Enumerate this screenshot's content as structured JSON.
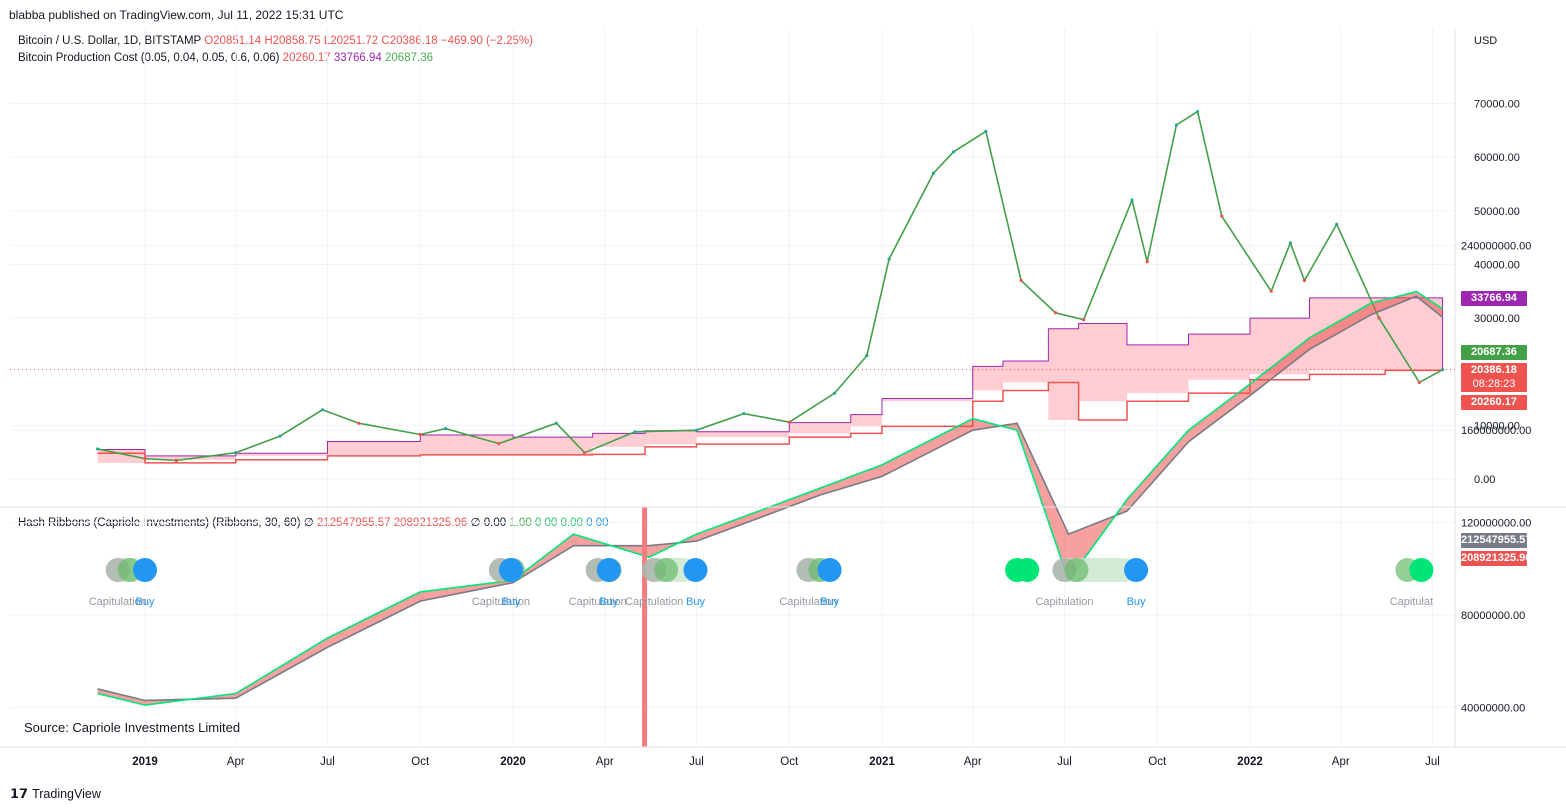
{
  "header": {
    "published": "blabba published on TradingView.com, Jul 11, 2022 15:31 UTC"
  },
  "legend_main": {
    "symbol": "Bitcoin / U.S. Dollar, 1D, BITSTAMP",
    "o": "O20851.14",
    "h": "H20858.75",
    "l": "L20251.72",
    "c": "C20386.18",
    "change": "−469.90 (−2.25%)"
  },
  "legend_pc": {
    "name": "Bitcoin Production Cost (0.05, 0.04, 0.05, 0.6, 0.06)",
    "v1": "20260.17",
    "v2": "33766.94",
    "v3": "20687.36"
  },
  "legend_hr": {
    "name": "Hash Ribbons (Capriole Investments) (Ribbons, 30, 60)",
    "sym": "∅",
    "v1": "212547955.57",
    "v2": "208921325.96",
    "sym2": "∅",
    "v3": "0.00",
    "v4": "1.00",
    "v5": "0 00",
    "v6": "0.00",
    "v7": "0 00"
  },
  "price_axis": {
    "currency": "USD",
    "ticks": [
      "70000.00",
      "60000.00",
      "50000.00",
      "40000.00",
      "30000.00",
      "10000.00",
      "0.00"
    ],
    "tags": {
      "pc_high": "33766.94",
      "pc_mid": "20687.36",
      "last": "20386.18",
      "countdown": "08:28:23",
      "pc_low": "20260.17"
    }
  },
  "hash_axis": {
    "ticks": [
      "240000000.00",
      "160000000.00",
      "120000000.00",
      "80000000.00",
      "40000000.00"
    ],
    "tags": {
      "fast": "212547955.57",
      "slow": "208921325.96"
    }
  },
  "time_axis": {
    "labels": [
      "2019",
      "Apr",
      "Jul",
      "Oct",
      "2020",
      "Apr",
      "Jul",
      "Oct",
      "2021",
      "Apr",
      "Jul",
      "Oct",
      "2022",
      "Apr",
      "Jul"
    ]
  },
  "signals": {
    "capitulation": "Capitulation",
    "buy": "Buy",
    "capitulation_cut": "Capitulat"
  },
  "source_note": "Source: Capriole Investments Limited",
  "footer": {
    "brand": "TradingView"
  },
  "colors": {
    "up": "#26a69a",
    "down": "#ef5350",
    "green_line": "#43a047",
    "purple_line": "#9c27b0",
    "fill": "#ffcdd2",
    "fast_ribbon": "#00e676",
    "slow_ribbon": "#787b86",
    "buy_dot": "#2196f3",
    "event_bar": "#f77c80"
  },
  "chart_data": [
    {
      "type": "line",
      "title": "Bitcoin / U.S. Dollar, 1D, BITSTAMP",
      "x": [
        "2018-11-15",
        "2019-01-01",
        "2019-02-01",
        "2019-04-01",
        "2019-05-15",
        "2019-06-26",
        "2019-08-01",
        "2019-10-01",
        "2019-10-26",
        "2019-12-18",
        "2020-02-13",
        "2020-03-12",
        "2020-05-01",
        "2020-07-01",
        "2020-08-17",
        "2020-10-01",
        "2020-11-15",
        "2020-12-17",
        "2021-01-08",
        "2021-02-21",
        "2021-03-13",
        "2021-04-14",
        "2021-05-19",
        "2021-06-22",
        "2021-07-20",
        "2021-09-06",
        "2021-09-21",
        "2021-10-20",
        "2021-11-10",
        "2021-12-04",
        "2022-01-22",
        "2022-02-10",
        "2022-02-24",
        "2022-03-28",
        "2022-05-09",
        "2022-06-18",
        "2022-07-11"
      ],
      "series": [
        {
          "name": "Bitcoin / U.S. Dollar",
          "values": [
            5600,
            3800,
            3450,
            4900,
            8000,
            12900,
            10400,
            8300,
            9400,
            6600,
            10400,
            4900,
            8800,
            9100,
            12200,
            10600,
            16000,
            23000,
            41000,
            57000,
            61000,
            64800,
            37000,
            31000,
            29700,
            52000,
            40500,
            66000,
            68500,
            49000,
            35000,
            44000,
            37000,
            47500,
            30000,
            18000,
            20386
          ]
        }
      ],
      "price_production_cost_bands": {
        "x": [
          "2018-11-15",
          "2019-01-01",
          "2019-04-01",
          "2019-07-01",
          "2019-10-01",
          "2020-01-01",
          "2020-03-20",
          "2020-05-11",
          "2020-07-01",
          "2020-10-01",
          "2020-12-01",
          "2021-01-01",
          "2021-04-01",
          "2021-05-01",
          "2021-06-15",
          "2021-07-15",
          "2021-09-01",
          "2021-11-01",
          "2022-01-01",
          "2022-03-01",
          "2022-05-15",
          "2022-07-11"
        ],
        "series": [
          {
            "name": "20687.36",
            "values": [
              5500,
              4300,
              4800,
              7000,
              8200,
              7800,
              8500,
              9000,
              8800,
              10500,
              12000,
              15000,
              21000,
              22000,
              28000,
              29000,
              25000,
              27000,
              30000,
              33766,
              33766,
              20687
            ]
          },
          {
            "name": "20260.17",
            "values": [
              4800,
              3000,
              3600,
              4300,
              4500,
              4500,
              4600,
              6000,
              6500,
              7800,
              8500,
              9800,
              14500,
              16500,
              18000,
              11000,
              14500,
              16000,
              18500,
              19500,
              20260,
              20260
            ]
          }
        ],
        "ylim": [
          0,
          75000
        ]
      }
    },
    {
      "type": "line",
      "title": "Hash Ribbons (Capriole Investments) (Ribbons, 30, 60)",
      "x": [
        "2018-11-15",
        "2019-01-01",
        "2019-04-01",
        "2019-07-01",
        "2019-10-01",
        "2020-01-01",
        "2020-03-01",
        "2020-05-15",
        "2020-07-01",
        "2020-09-01",
        "2020-11-01",
        "2021-01-01",
        "2021-04-01",
        "2021-05-15",
        "2021-07-05",
        "2021-09-01",
        "2021-11-01",
        "2022-01-01",
        "2022-03-01",
        "2022-05-01",
        "2022-06-15",
        "2022-07-11"
      ],
      "series": [
        {
          "name": "212547955.57",
          "values": [
            46000000,
            41000000,
            46000000,
            70000000,
            90000000,
            95000000,
            115000000,
            105000000,
            115000000,
            125000000,
            135000000,
            145000000,
            165000000,
            160000000,
            95000000,
            130000000,
            160000000,
            180000000,
            200000000,
            215000000,
            220000000,
            212547955
          ]
        },
        {
          "name": "208921325.96",
          "values": [
            48000000,
            43000000,
            44000000,
            66000000,
            86000000,
            94000000,
            110000000,
            110000000,
            112000000,
            122000000,
            132000000,
            140000000,
            160000000,
            163000000,
            115000000,
            125000000,
            155000000,
            175000000,
            195000000,
            210000000,
            218000000,
            208921325
          ]
        }
      ],
      "ylim": [
        20000000,
        240000000
      ]
    }
  ]
}
